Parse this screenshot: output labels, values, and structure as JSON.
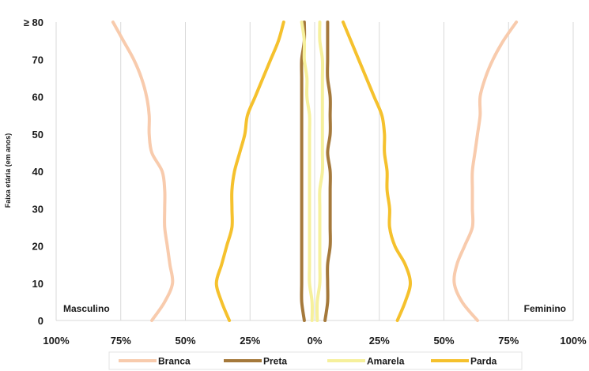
{
  "chart_data": {
    "type": "line",
    "ylabel": "Faixa etária (em anos)",
    "y_tick_labels": [
      "0",
      "10",
      "20",
      "30",
      "40",
      "50",
      "60",
      "70",
      "≥ 80"
    ],
    "y_tick_values": [
      0,
      10,
      20,
      30,
      40,
      50,
      60,
      70,
      80
    ],
    "x_tick_labels": [
      "100%",
      "75%",
      "50%",
      "25%",
      "0%",
      "25%",
      "50%",
      "75%",
      "100%"
    ],
    "x_tick_values": [
      -100,
      -75,
      -50,
      -25,
      0,
      25,
      50,
      75,
      100
    ],
    "xlim": [
      -100,
      100
    ],
    "ylim": [
      0,
      80
    ],
    "grid": "vertical",
    "legend_position": "bottom",
    "left_label": "Masculino",
    "right_label": "Feminino",
    "ages": [
      0,
      5,
      10,
      15,
      20,
      25,
      30,
      35,
      40,
      45,
      50,
      55,
      60,
      65,
      70,
      75,
      80
    ],
    "series": [
      {
        "name": "Branca",
        "color": "#f8cbad",
        "male": [
          63,
          58,
          55,
          56,
          57,
          58,
          58,
          58,
          59,
          63,
          64,
          64,
          65,
          67,
          70,
          74,
          78
        ],
        "female": [
          63,
          57,
          54,
          55,
          58,
          61,
          61,
          61,
          61,
          62,
          63,
          64,
          64,
          66,
          69,
          73,
          78
        ]
      },
      {
        "name": "Preta",
        "color": "#a5793b",
        "male": [
          4,
          5,
          5,
          5,
          5,
          5,
          5,
          5,
          5,
          5,
          5,
          5,
          5,
          5,
          5,
          4,
          4
        ],
        "female": [
          4,
          5,
          5,
          5,
          6,
          6,
          6,
          6,
          6,
          5,
          6,
          6,
          6,
          5,
          5,
          5,
          5
        ]
      },
      {
        "name": "Amarela",
        "color": "#f6f09c",
        "male": [
          1,
          1,
          2,
          2,
          2,
          2,
          2,
          2,
          2,
          2,
          2,
          2,
          3,
          3,
          4,
          4,
          5
        ],
        "female": [
          1,
          1,
          2,
          2,
          2,
          2,
          2,
          2,
          3,
          3,
          3,
          3,
          3,
          3,
          3,
          2,
          2
        ]
      },
      {
        "name": "Parda",
        "color": "#f5c12d",
        "male": [
          33,
          36,
          38,
          36,
          34,
          32,
          32,
          32,
          31,
          29,
          27,
          26,
          23,
          20,
          17,
          14,
          12
        ],
        "female": [
          32,
          35,
          37,
          35,
          31,
          29,
          29,
          28,
          28,
          27,
          27,
          26,
          23,
          20,
          17,
          14,
          11
        ]
      }
    ]
  }
}
